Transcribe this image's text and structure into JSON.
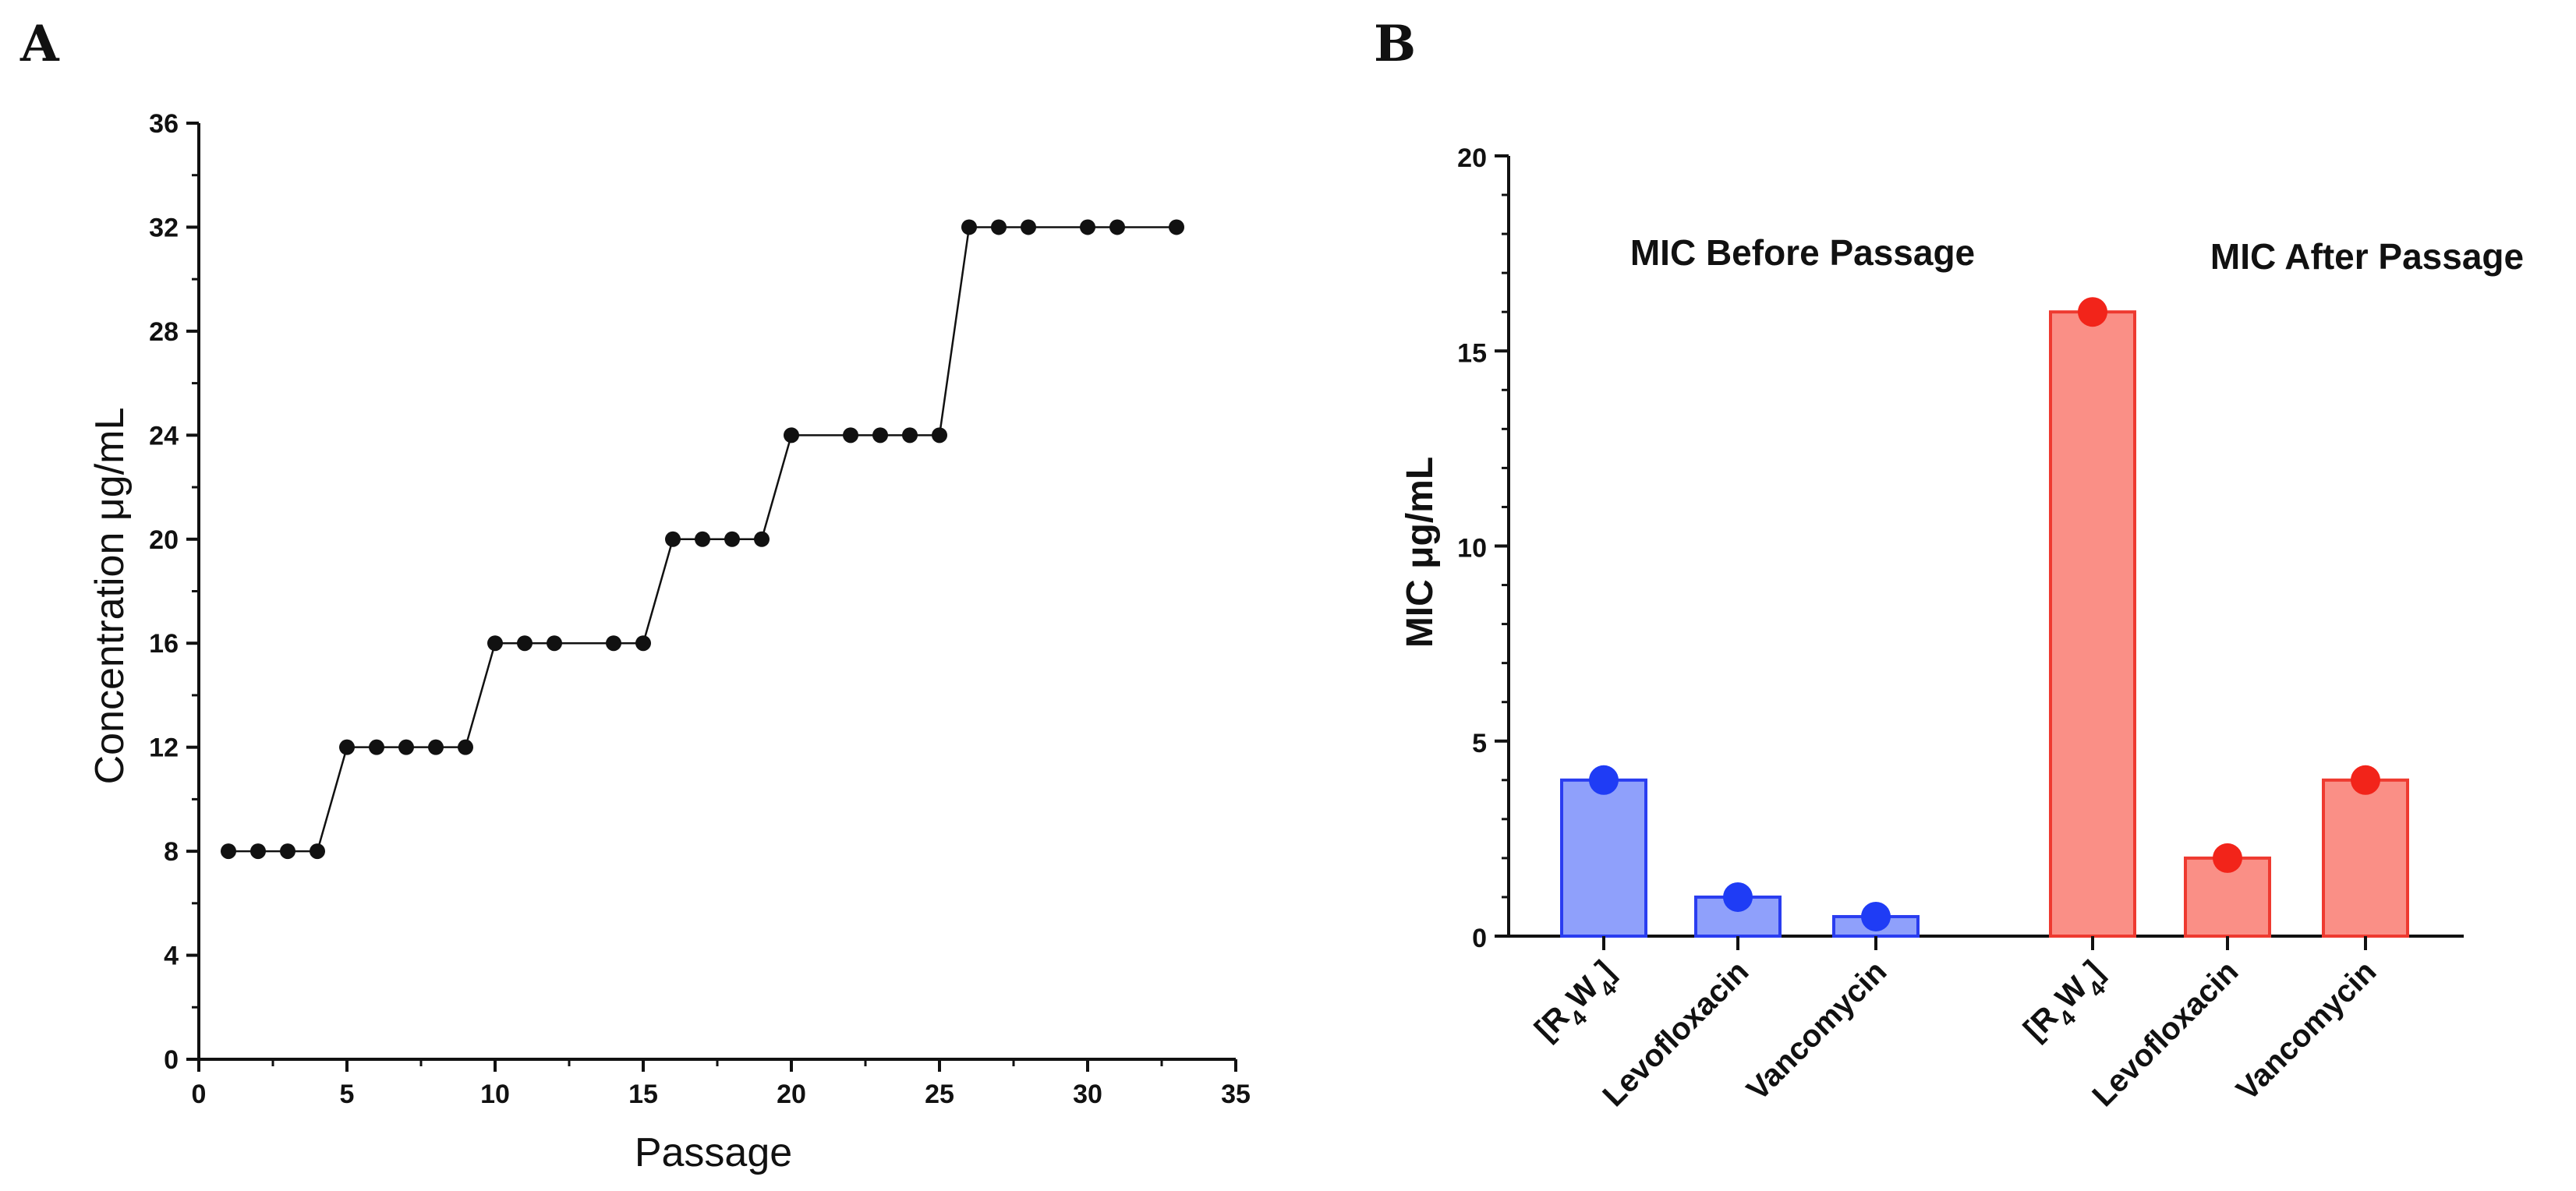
{
  "panel_a_letter": "A",
  "panel_b_letter": "B",
  "chart_data": [
    {
      "type": "line",
      "panel": "A",
      "title": "",
      "xlabel": "Passage",
      "ylabel": "Concentration μg/mL",
      "xlim": [
        0,
        35
      ],
      "ylim": [
        0,
        36
      ],
      "xticks": [
        0,
        5,
        10,
        15,
        20,
        25,
        30,
        35
      ],
      "yticks": [
        0,
        4,
        8,
        12,
        16,
        20,
        24,
        28,
        32,
        36
      ],
      "x": [
        1,
        2,
        3,
        4,
        5,
        6,
        7,
        8,
        9,
        10,
        11,
        12,
        14,
        15,
        16,
        17,
        18,
        19,
        20,
        22,
        23,
        24,
        25,
        26,
        27,
        28,
        30,
        31,
        33
      ],
      "y": [
        8,
        8,
        8,
        8,
        12,
        12,
        12,
        12,
        12,
        16,
        16,
        16,
        16,
        16,
        20,
        20,
        20,
        20,
        24,
        24,
        24,
        24,
        24,
        32,
        32,
        32,
        32,
        32,
        32
      ],
      "grid": false,
      "marker": "circle",
      "color": "#111111"
    },
    {
      "type": "bar",
      "panel": "B",
      "title": "",
      "xlabel": "",
      "ylabel": "MIC μg/mL",
      "ylim": [
        0,
        20
      ],
      "yticks": [
        0,
        5,
        10,
        15,
        20
      ],
      "groups": [
        {
          "name": "MIC Before Passage",
          "fill": "#8fa0fb",
          "edge": "#2a3df0",
          "dot": "#1f3cf5",
          "bars": [
            {
              "label_main": "[R",
              "label_sub1": "4",
              "label_mid": "W",
              "label_sub2": "4",
              "label_end": "]",
              "value": 4
            },
            {
              "label": "Levofloxacin",
              "value": 1
            },
            {
              "label": "Vancomycin",
              "value": 0.5
            }
          ]
        },
        {
          "name": "MIC After Passage",
          "fill": "#fa8f86",
          "edge": "#ee3a30",
          "dot": "#f2241a",
          "bars": [
            {
              "label_main": "[R",
              "label_sub1": "4",
              "label_mid": "W",
              "label_sub2": "4",
              "label_end": "]",
              "value": 16
            },
            {
              "label": "Levofloxacin",
              "value": 2
            },
            {
              "label": "Vancomycin",
              "value": 4
            }
          ]
        }
      ]
    }
  ]
}
